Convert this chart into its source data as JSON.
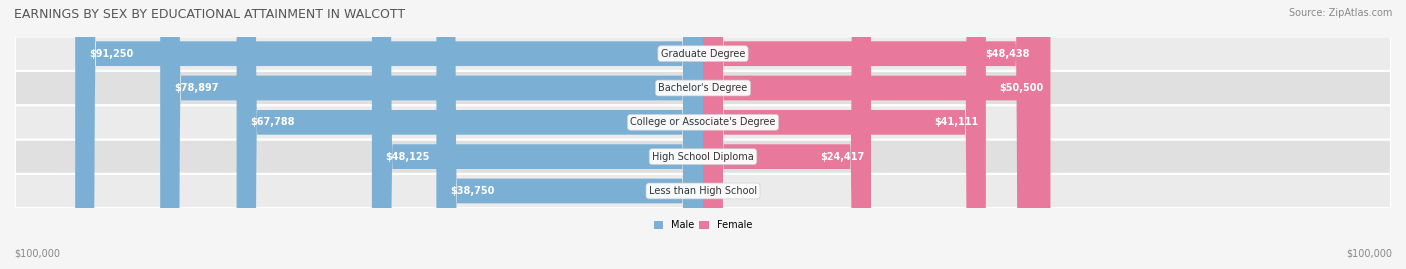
{
  "title": "EARNINGS BY SEX BY EDUCATIONAL ATTAINMENT IN WALCOTT",
  "source": "Source: ZipAtlas.com",
  "categories": [
    "Less than High School",
    "High School Diploma",
    "College or Associate's Degree",
    "Bachelor's Degree",
    "Graduate Degree"
  ],
  "male_values": [
    38750,
    48125,
    67788,
    78897,
    91250
  ],
  "female_values": [
    0,
    24417,
    41111,
    50500,
    48438
  ],
  "max_value": 100000,
  "male_color": "#7bafd4",
  "female_color": "#e8789c",
  "male_label": "Male",
  "female_label": "Female",
  "bar_bg_color": "#e8e8e8",
  "row_bg_colors": [
    "#f0f0f0",
    "#e8e8e8"
  ],
  "axis_label_left": "$100,000",
  "axis_label_right": "$100,000",
  "title_fontsize": 9,
  "source_fontsize": 7,
  "label_fontsize": 7,
  "category_fontsize": 7,
  "value_fontsize": 7
}
